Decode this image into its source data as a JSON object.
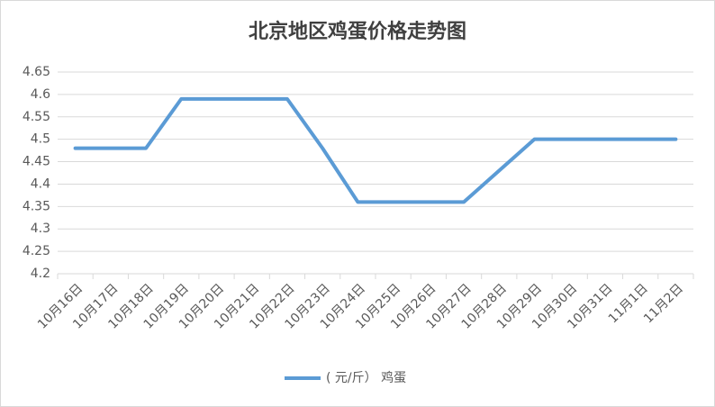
{
  "chart_data": {
    "type": "line",
    "title": "北京地区鸡蛋价格走势图",
    "categories": [
      "10月16日",
      "10月17日",
      "10月18日",
      "10月19日",
      "10月20日",
      "10月21日",
      "10月22日",
      "10月23日",
      "10月24日",
      "10月25日",
      "10月26日",
      "10月27日",
      "10月28日",
      "10月29日",
      "10月30日",
      "10月31日",
      "11月1日",
      "11月2日"
    ],
    "series": [
      {
        "name": "( 元/斤） 鸡蛋",
        "color": "#5b9bd5",
        "values": [
          4.48,
          4.48,
          4.48,
          4.59,
          4.59,
          4.59,
          4.59,
          4.48,
          4.36,
          4.36,
          4.36,
          4.36,
          4.43,
          4.5,
          4.5,
          4.5,
          4.5,
          4.5
        ]
      }
    ],
    "ylim": [
      4.2,
      4.65
    ],
    "yticks": [
      4.2,
      4.25,
      4.3,
      4.35,
      4.4,
      4.45,
      4.5,
      4.55,
      4.6,
      4.65
    ],
    "grid": true
  }
}
